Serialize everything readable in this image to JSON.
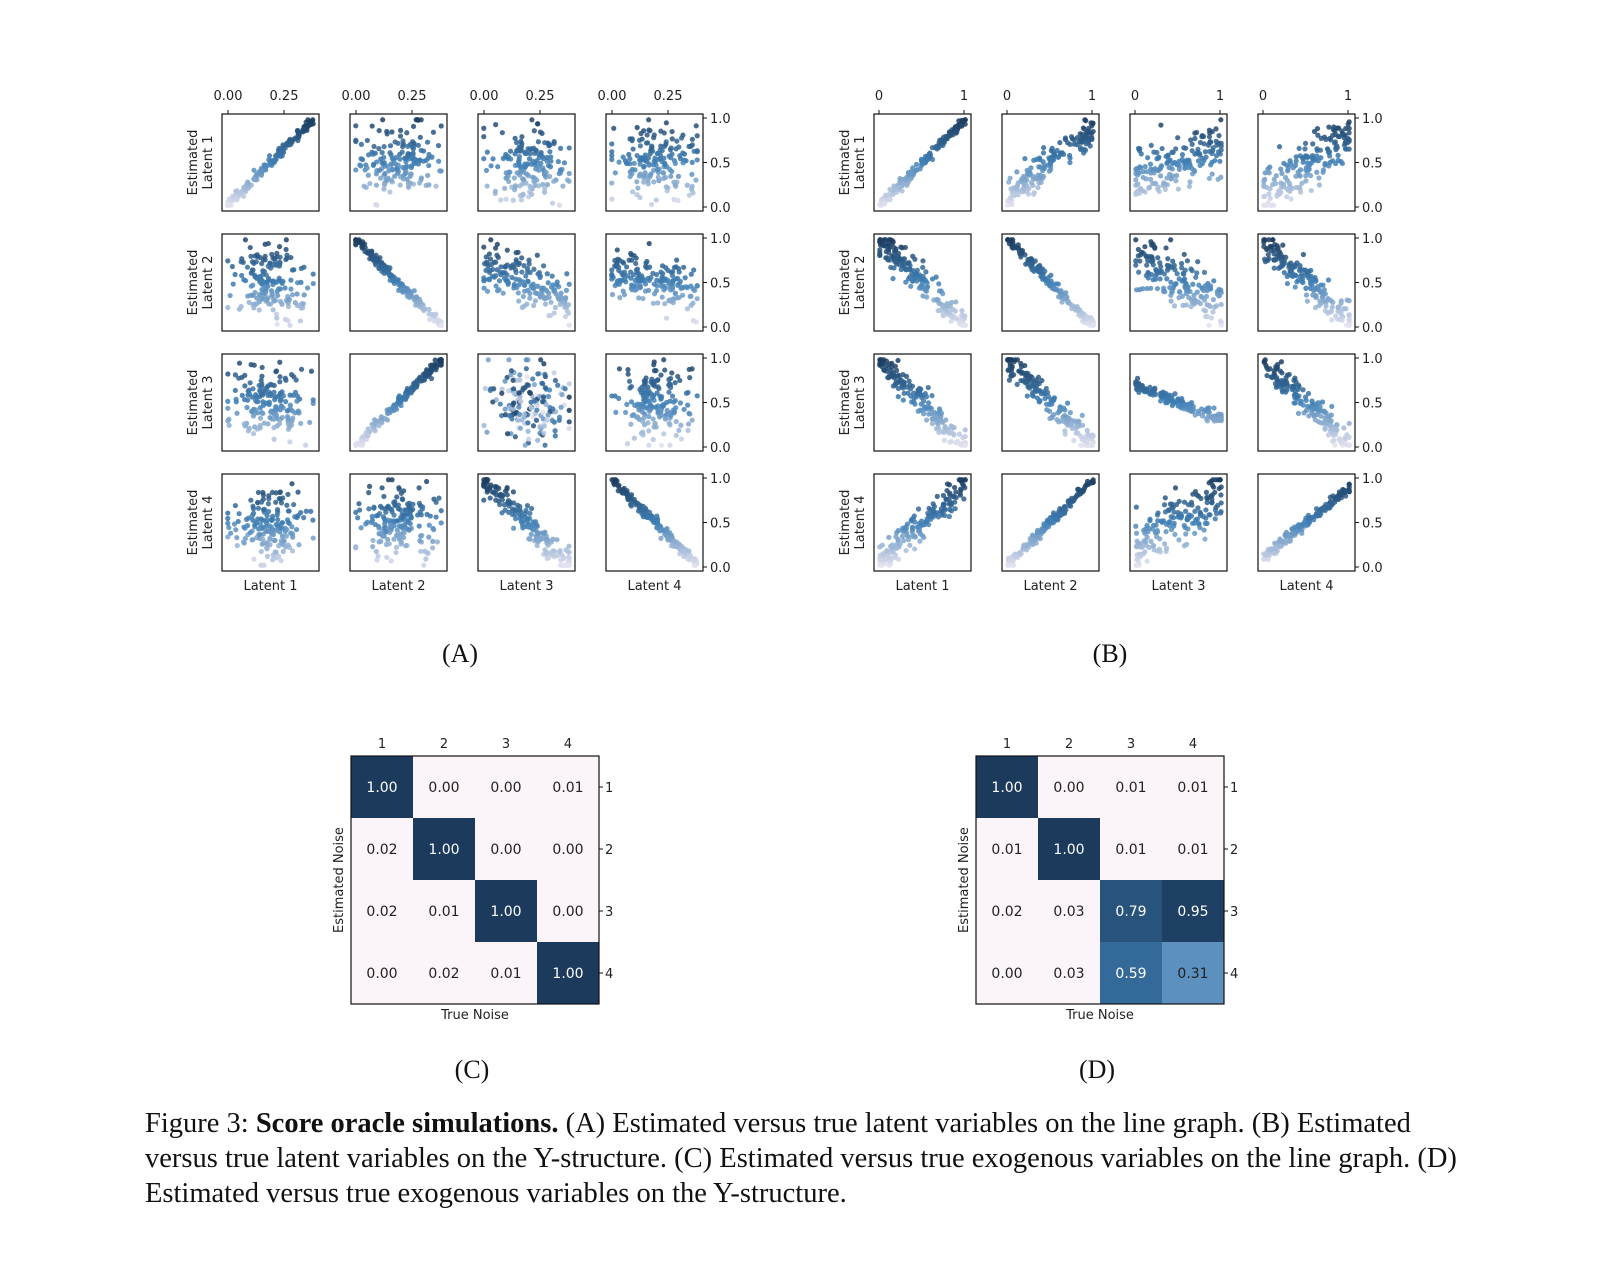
{
  "colors": {
    "dark": "#1b3a5c",
    "mid": "#3f7fb5",
    "light": "#e9e4f0",
    "cell_bg": "#fbf5f9"
  },
  "panel_a": {
    "label": "(A)",
    "top_ticks": [
      "0.00",
      "0.25"
    ],
    "right_ticks": [
      "1.0",
      "0.5",
      "0.0"
    ],
    "row_labels": [
      [
        "Estimated",
        "Latent 1"
      ],
      [
        "Estimated",
        "Latent 2"
      ],
      [
        "Estimated",
        "Latent 3"
      ],
      [
        "Estimated",
        "Latent 4"
      ]
    ],
    "col_labels": [
      "Latent 1",
      "Latent 2",
      "Latent 3",
      "Latent 4"
    ],
    "slopes": [
      [
        1,
        0,
        0,
        0
      ],
      [
        0,
        -1,
        -0.3,
        -0.2
      ],
      [
        0,
        1,
        0,
        0
      ],
      [
        0,
        0,
        -0.9,
        -0.9
      ]
    ]
  },
  "panel_b": {
    "label": "(B)",
    "top_ticks": [
      "0",
      "1"
    ],
    "right_ticks": [
      "1.0",
      "0.5",
      "0.0"
    ],
    "row_labels": [
      [
        "Estimated",
        "Latent 1"
      ],
      [
        "Estimated",
        "Latent 2"
      ],
      [
        "Estimated",
        "Latent 3"
      ],
      [
        "Estimated",
        "Latent 4"
      ]
    ],
    "col_labels": [
      "Latent 1",
      "Latent 2",
      "Latent 3",
      "Latent 4"
    ],
    "slopes": [
      [
        1,
        0.7,
        0.3,
        0.6
      ],
      [
        -0.9,
        -1,
        -0.4,
        -0.8
      ],
      [
        -0.9,
        -0.9,
        -0.3,
        -0.8
      ],
      [
        0.8,
        0.95,
        0.5,
        0.7
      ]
    ]
  },
  "panel_c": {
    "label": "(C)",
    "col_ticks": [
      "1",
      "2",
      "3",
      "4"
    ],
    "row_ticks": [
      "1",
      "2",
      "3",
      "4"
    ],
    "xlabel": "True Noise",
    "ylabel": "Estimated Noise",
    "matrix": [
      [
        "1.00",
        "0.00",
        "0.00",
        "0.01"
      ],
      [
        "0.02",
        "1.00",
        "0.00",
        "0.00"
      ],
      [
        "0.02",
        "0.01",
        "1.00",
        "0.00"
      ],
      [
        "0.00",
        "0.02",
        "0.01",
        "1.00"
      ]
    ]
  },
  "panel_d": {
    "label": "(D)",
    "col_ticks": [
      "1",
      "2",
      "3",
      "4"
    ],
    "row_ticks": [
      "1",
      "2",
      "3",
      "4"
    ],
    "xlabel": "True Noise",
    "ylabel": "Estimated Noise",
    "matrix": [
      [
        "1.00",
        "0.00",
        "0.01",
        "0.01"
      ],
      [
        "0.01",
        "1.00",
        "0.01",
        "0.01"
      ],
      [
        "0.02",
        "0.03",
        "0.79",
        "0.95"
      ],
      [
        "0.00",
        "0.03",
        "0.59",
        "0.31"
      ]
    ]
  },
  "caption": {
    "prefix": "Figure 3: ",
    "bold": "Score oracle simulations.",
    "text": " (A) Estimated versus true latent variables on the line graph. (B) Estimated versus true latent variables on the Y-structure. (C) Estimated versus true exogenous variables on the line graph. (D) Estimated versus true exogenous variables on the Y-structure."
  }
}
